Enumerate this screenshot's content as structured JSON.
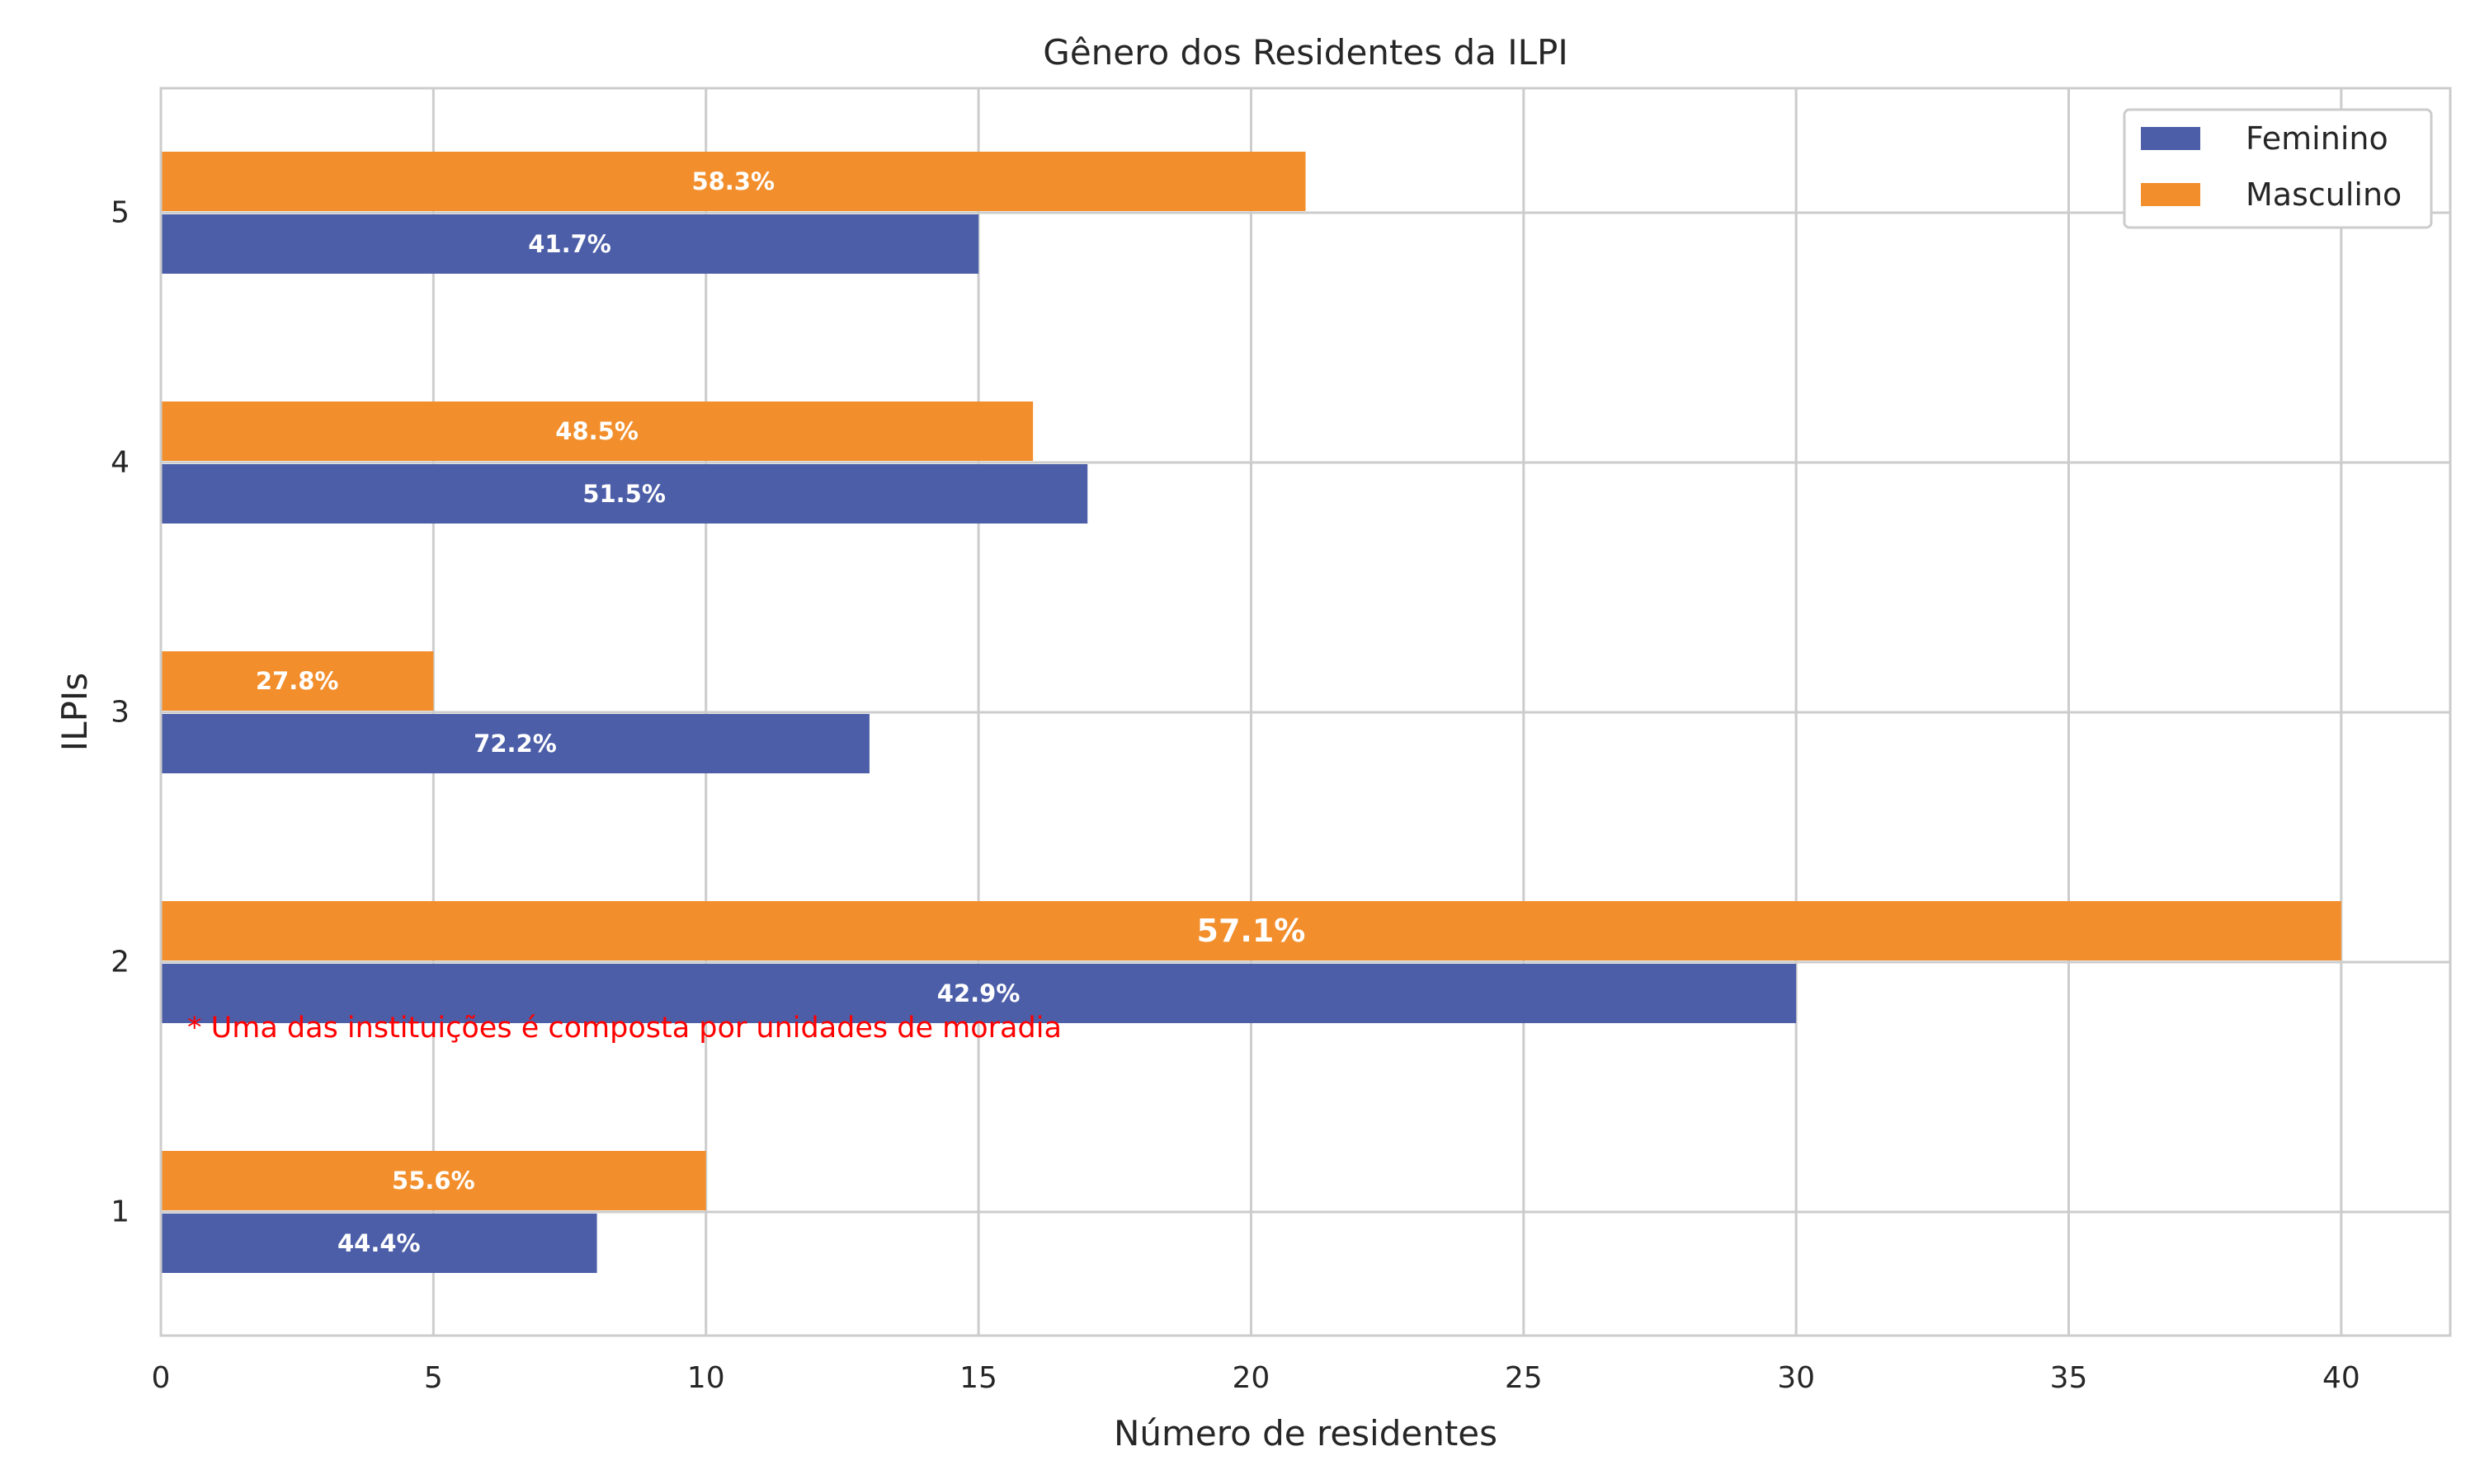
{
  "chart_data": {
    "type": "bar",
    "orientation": "horizontal",
    "title": "Gênero dos Residentes da ILPI",
    "xlabel": "Número de residentes",
    "ylabel": "ILPIs",
    "categories": [
      "1",
      "2",
      "3",
      "4",
      "5"
    ],
    "series": [
      {
        "name": "Feminino",
        "color": "#4c5ea8",
        "values": [
          8,
          30,
          13,
          17,
          15
        ],
        "labels": [
          "44.4%",
          "42.9%",
          "72.2%",
          "51.5%",
          "41.7%"
        ]
      },
      {
        "name": "Masculino",
        "color": "#f28e2b",
        "values": [
          10,
          40,
          5,
          16,
          21
        ],
        "labels": [
          "55.6%",
          "57.1%",
          "27.8%",
          "48.5%",
          "58.3%"
        ]
      }
    ],
    "xlim": [
      0,
      42
    ],
    "xticks": [
      0,
      5,
      10,
      15,
      20,
      25,
      30,
      35,
      40
    ],
    "grid": true,
    "legend_position": "top-right",
    "annotation": {
      "text": "* Uma das instituições é composta por unidades de moradia",
      "color": "#ff0000"
    }
  }
}
